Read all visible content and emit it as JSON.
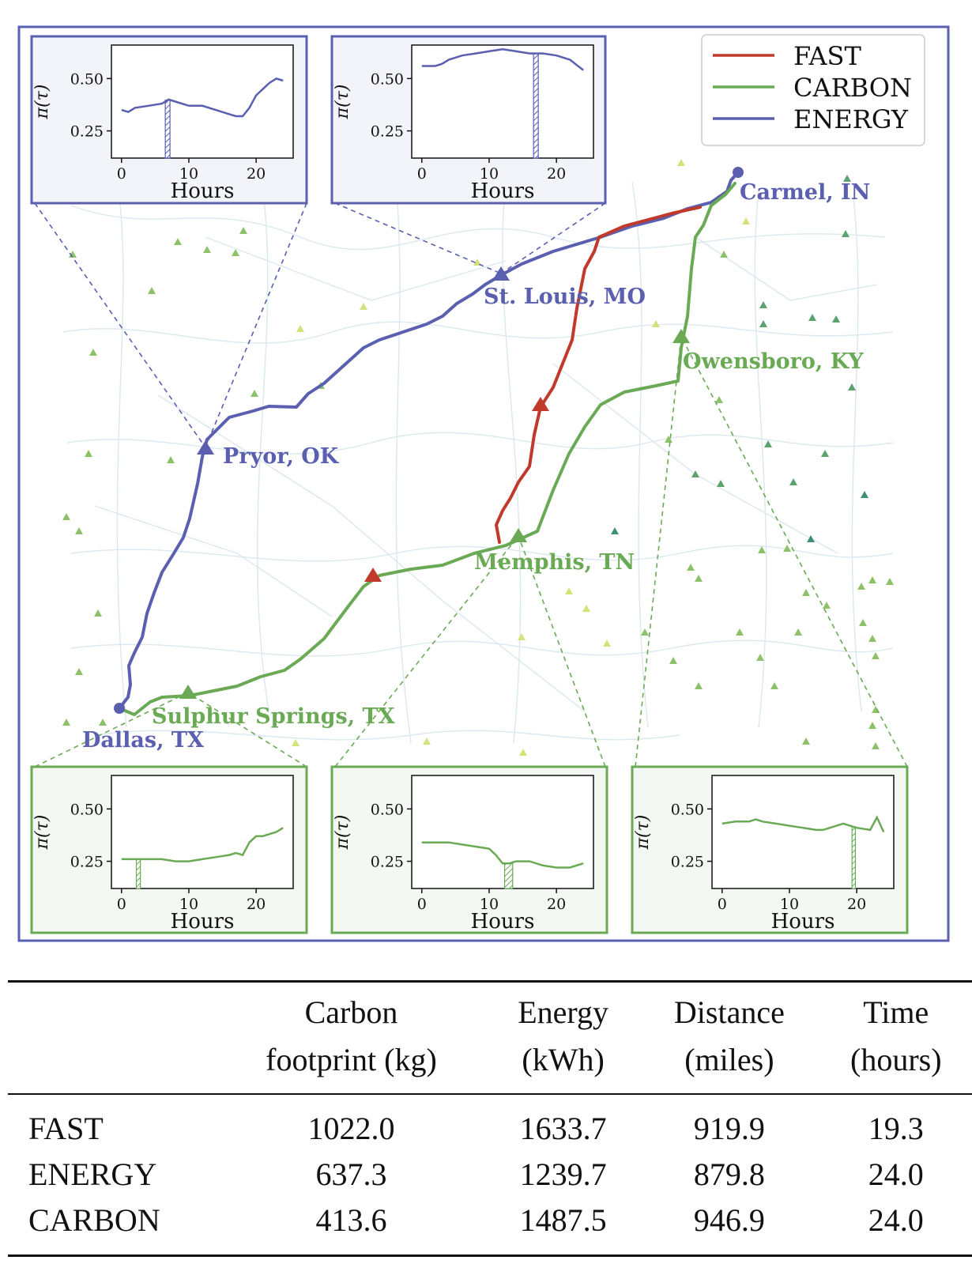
{
  "map": {
    "legend": [
      {
        "name": "FAST",
        "color": "#c0392b"
      },
      {
        "name": "CARBON",
        "color": "#6aaa55"
      },
      {
        "name": "ENERGY",
        "color": "#5a5fb0"
      }
    ],
    "cities": [
      {
        "name": "Carmel, IN",
        "color": "#5a5fb0",
        "marker": "circle"
      },
      {
        "name": "St. Louis, MO",
        "color": "#5a5fb0",
        "marker": "triangle"
      },
      {
        "name": "Pryor, OK",
        "color": "#5a5fb0",
        "marker": "triangle"
      },
      {
        "name": "Dallas, TX",
        "color": "#5a5fb0",
        "marker": "circle"
      },
      {
        "name": "Owensboro, KY",
        "color": "#6aaa55",
        "marker": "triangle"
      },
      {
        "name": "Memphis, TN",
        "color": "#6aaa55",
        "marker": "triangle"
      },
      {
        "name": "Sulphur Springs, TX",
        "color": "#6aaa55",
        "marker": "triangle"
      }
    ],
    "colors": {
      "fast": "#c0392b",
      "carbon": "#6aaa55",
      "energy": "#5a5fb0",
      "frame": "#5a5fb0"
    }
  },
  "chart_data": [
    {
      "type": "line",
      "series_color": "#5a5fb0",
      "xlabel": "Hours",
      "ylabel": "π(τ)",
      "xticks": [
        0,
        10,
        20
      ],
      "yticks": [
        "0.25",
        "0.50"
      ],
      "xlim": [
        -1.5,
        25.5
      ],
      "ylim": [
        0.12,
        0.66
      ],
      "x": [
        0,
        1,
        2,
        4,
        6,
        7,
        8,
        10,
        12,
        14,
        16,
        17,
        18,
        19,
        20,
        21,
        22,
        23,
        24
      ],
      "y": [
        0.35,
        0.34,
        0.36,
        0.37,
        0.38,
        0.4,
        0.39,
        0.37,
        0.37,
        0.35,
        0.33,
        0.32,
        0.32,
        0.36,
        0.42,
        0.45,
        0.48,
        0.5,
        0.49
      ],
      "highlight": [
        6.5,
        7.2
      ]
    },
    {
      "type": "line",
      "series_color": "#5a5fb0",
      "xlabel": "Hours",
      "ylabel": "π(τ)",
      "xticks": [
        0,
        10,
        20
      ],
      "yticks": [
        "0.25",
        "0.50"
      ],
      "xlim": [
        -1.5,
        25.5
      ],
      "ylim": [
        0.12,
        0.66
      ],
      "x": [
        0,
        1,
        2,
        3,
        4,
        6,
        8,
        10,
        12,
        14,
        16,
        17,
        18,
        20,
        22,
        24
      ],
      "y": [
        0.56,
        0.56,
        0.56,
        0.57,
        0.59,
        0.61,
        0.62,
        0.63,
        0.64,
        0.63,
        0.62,
        0.62,
        0.62,
        0.61,
        0.59,
        0.54
      ],
      "highlight": [
        16.6,
        17.3
      ]
    },
    {
      "type": "line",
      "series_color": "#6aaa55",
      "xlabel": "Hours",
      "ylabel": "π(τ)",
      "xticks": [
        0,
        10,
        20
      ],
      "yticks": [
        "0.25",
        "0.50"
      ],
      "xlim": [
        -1.5,
        25.5
      ],
      "ylim": [
        0.12,
        0.66
      ],
      "x": [
        0,
        2,
        4,
        6,
        8,
        10,
        12,
        14,
        16,
        17,
        18,
        19,
        20,
        21,
        22,
        23,
        24
      ],
      "y": [
        0.26,
        0.26,
        0.26,
        0.26,
        0.25,
        0.25,
        0.26,
        0.27,
        0.28,
        0.29,
        0.28,
        0.34,
        0.37,
        0.37,
        0.38,
        0.39,
        0.41
      ],
      "highlight": [
        2.2,
        2.8
      ]
    },
    {
      "type": "line",
      "series_color": "#6aaa55",
      "xlabel": "Hours",
      "ylabel": "π(τ)",
      "xticks": [
        0,
        10,
        20
      ],
      "yticks": [
        "0.25",
        "0.50"
      ],
      "xlim": [
        -1.5,
        25.5
      ],
      "ylim": [
        0.12,
        0.66
      ],
      "x": [
        0,
        2,
        4,
        6,
        8,
        10,
        11,
        12,
        13,
        14,
        16,
        18,
        20,
        22,
        24
      ],
      "y": [
        0.34,
        0.34,
        0.34,
        0.33,
        0.32,
        0.31,
        0.28,
        0.24,
        0.24,
        0.25,
        0.25,
        0.23,
        0.22,
        0.22,
        0.24
      ],
      "highlight": [
        12.3,
        13.5
      ]
    },
    {
      "type": "line",
      "series_color": "#6aaa55",
      "xlabel": "Hours",
      "ylabel": "π(τ)",
      "xticks": [
        0,
        10,
        20
      ],
      "yticks": [
        "0.25",
        "0.50"
      ],
      "xlim": [
        -1.5,
        25.5
      ],
      "ylim": [
        0.12,
        0.66
      ],
      "x": [
        0,
        2,
        4,
        5,
        6,
        8,
        10,
        12,
        14,
        15,
        16,
        18,
        19,
        20,
        22,
        23,
        24
      ],
      "y": [
        0.43,
        0.44,
        0.44,
        0.45,
        0.44,
        0.43,
        0.42,
        0.41,
        0.4,
        0.4,
        0.41,
        0.43,
        0.42,
        0.41,
        0.4,
        0.46,
        0.39
      ],
      "highlight": [
        19.3,
        19.8
      ]
    }
  ],
  "table": {
    "headers": [
      {
        "line1": "",
        "line2": ""
      },
      {
        "line1": "Carbon",
        "line2": "footprint (kg)"
      },
      {
        "line1": "Energy",
        "line2": "(kWh)"
      },
      {
        "line1": "Distance",
        "line2": "(miles)"
      },
      {
        "line1": "Time",
        "line2": "(hours)"
      }
    ],
    "rows": [
      {
        "label": "FAST",
        "carbon": "1022.0",
        "energy": "1633.7",
        "distance": "919.9",
        "time": "19.3"
      },
      {
        "label": "ENERGY",
        "carbon": "637.3",
        "energy": "1239.7",
        "distance": "879.8",
        "time": "24.0"
      },
      {
        "label": "CARBON",
        "carbon": "413.6",
        "energy": "1487.5",
        "distance": "946.9",
        "time": "24.0"
      }
    ]
  }
}
